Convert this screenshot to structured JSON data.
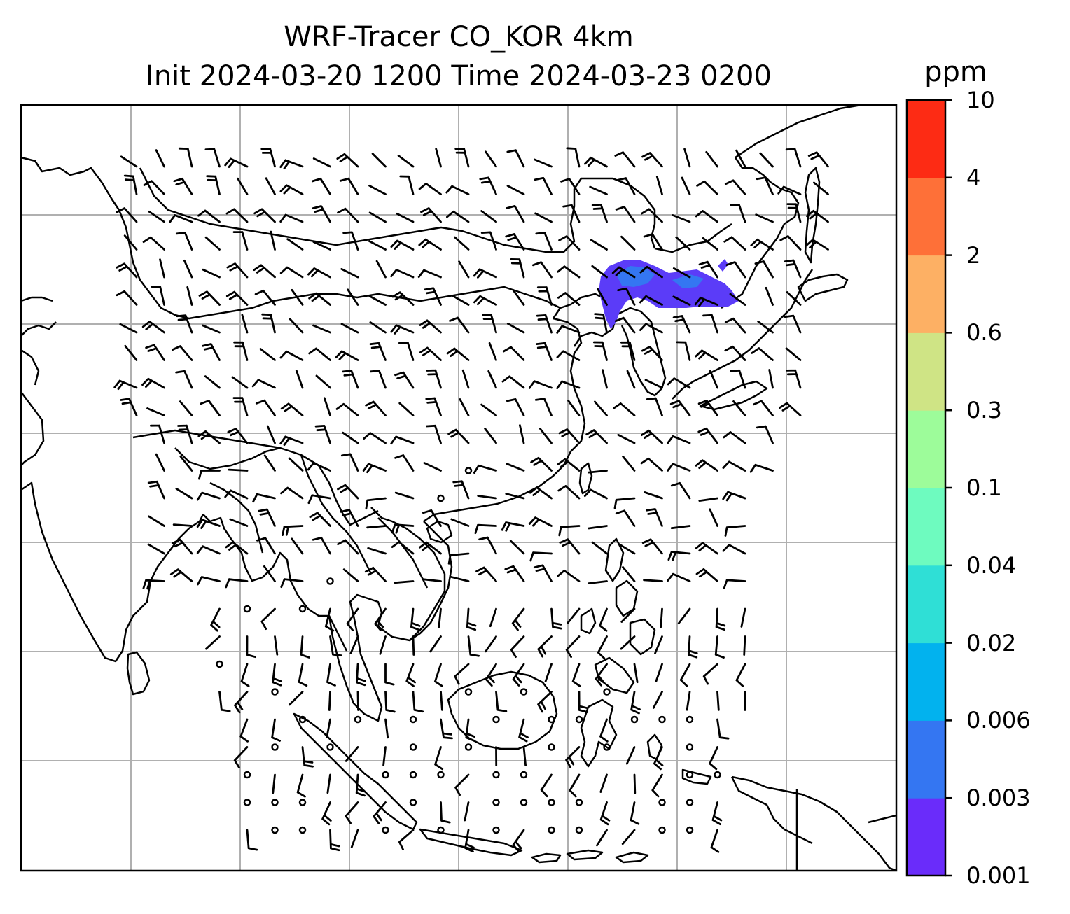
{
  "title": {
    "line1": "WRF-Tracer CO_KOR 4km",
    "line2": "Init 2024-03-20 1200 Time 2024-03-23 0200"
  },
  "colorbar": {
    "unit": "ppm",
    "ticks": [
      "0.001",
      "0.003",
      "0.006",
      "0.02",
      "0.04",
      "0.1",
      "0.3",
      "0.6",
      "2",
      "4",
      "10"
    ],
    "colors": [
      "#6a2cfa",
      "#3476f2",
      "#02b2ee",
      "#2fdfd6",
      "#6efbbf",
      "#9dfc9a",
      "#cfe485",
      "#fdb064",
      "#fe7038",
      "#fd2b14"
    ]
  },
  "map": {
    "gridlines": true,
    "plume_color": "#4b4ef8",
    "wind_barbs": true
  }
}
